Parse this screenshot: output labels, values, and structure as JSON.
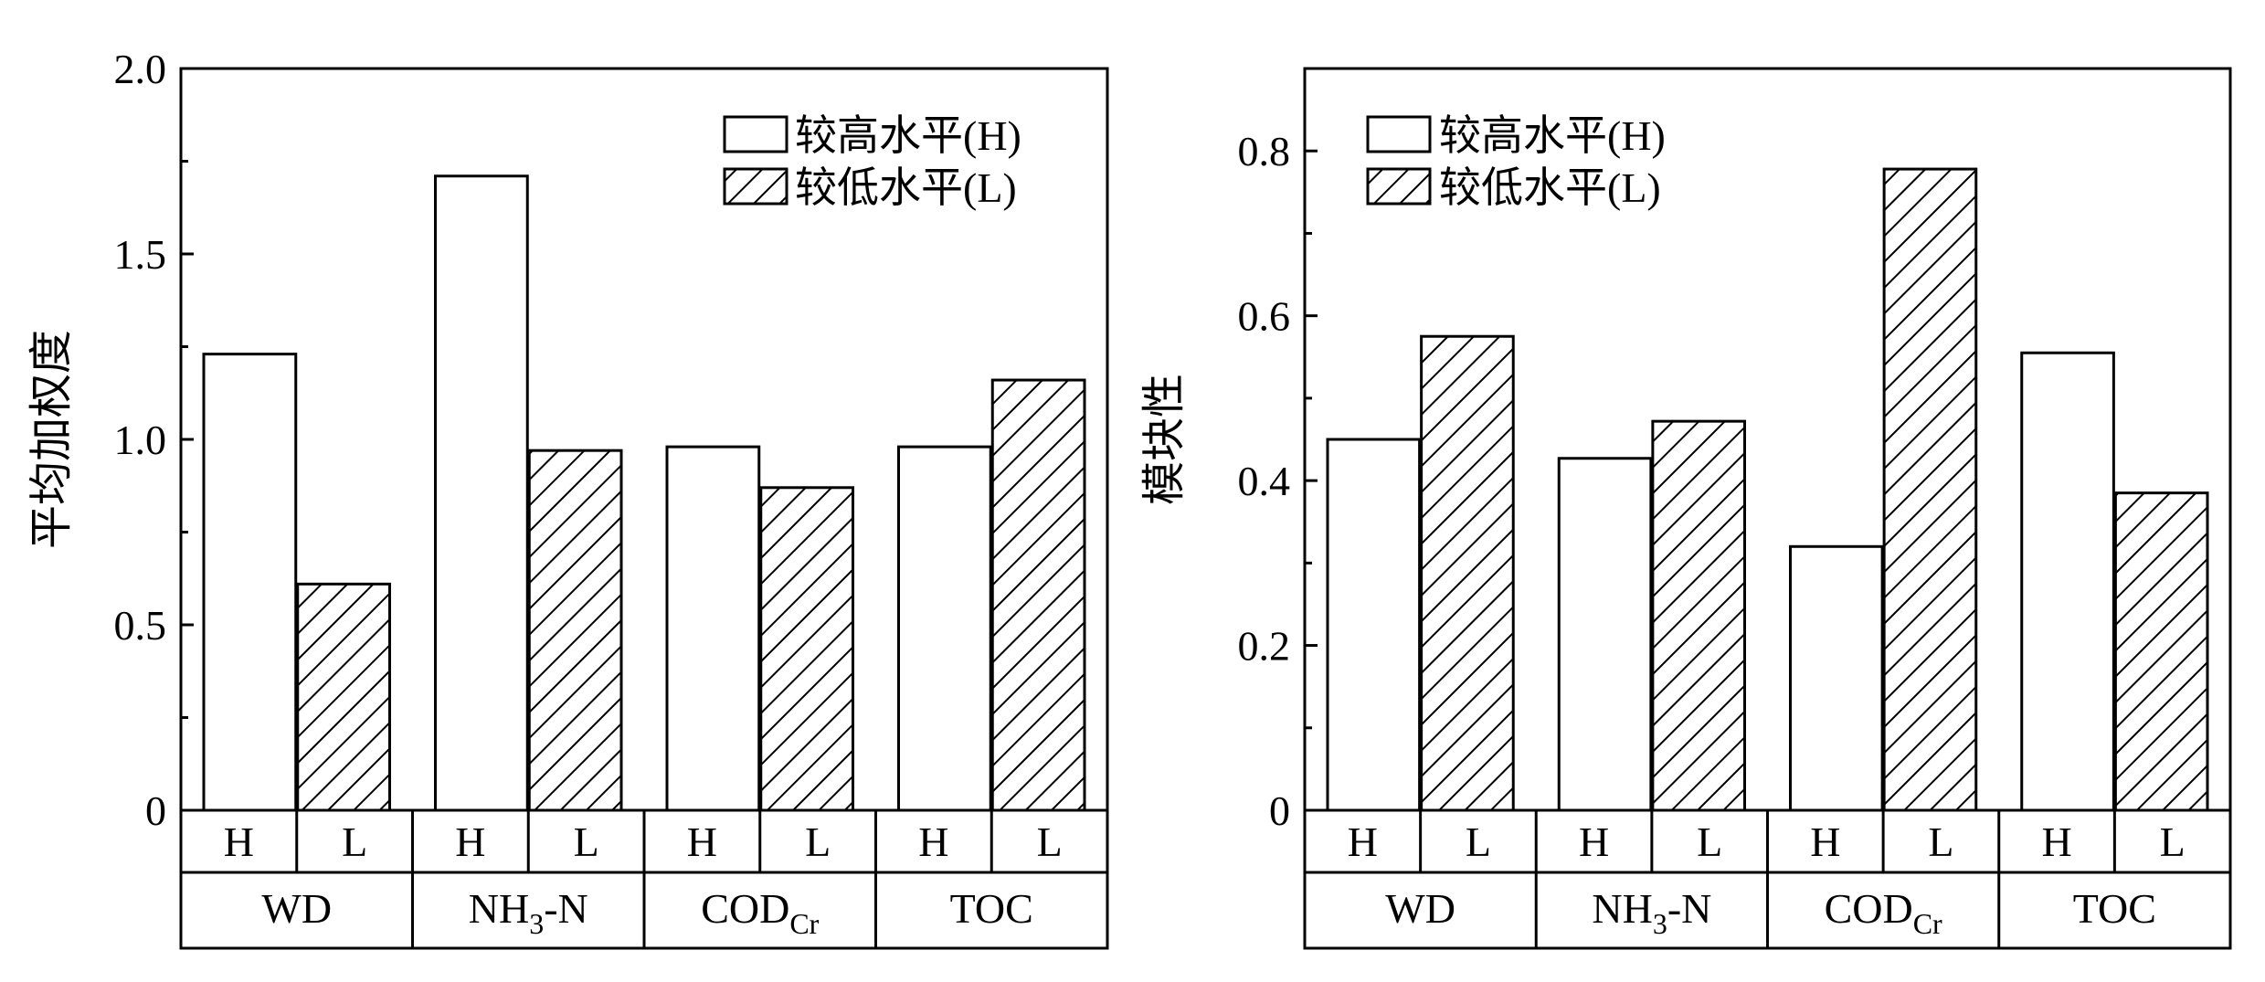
{
  "colors": {
    "stroke": "#000000",
    "background": "#ffffff",
    "hatch": "#000000"
  },
  "chart_data": [
    {
      "type": "bar",
      "title": "",
      "xlabel": "",
      "ylabel": "平均加权度",
      "ylim": [
        0,
        2.0
      ],
      "yticks": [
        "0",
        "0.5",
        "1.0",
        "1.5",
        "2.0"
      ],
      "ytick_values": [
        0,
        0.5,
        1.0,
        1.5,
        2.0
      ],
      "categories": [
        {
          "main": "WD",
          "sub": ""
        },
        {
          "main": "NH",
          "sub": "3",
          "suffix": "-N"
        },
        {
          "main": "COD",
          "sub": "Cr",
          "suffix": ""
        },
        {
          "main": "TOC",
          "sub": ""
        }
      ],
      "level_labels": [
        "H",
        "L"
      ],
      "series": [
        {
          "name": "较高水平(H)",
          "pattern": "open",
          "values": [
            1.23,
            1.71,
            0.98,
            0.98
          ]
        },
        {
          "name": "较低水平(L)",
          "pattern": "hatched",
          "values": [
            0.61,
            0.97,
            0.87,
            1.16
          ]
        }
      ],
      "legend": "top-right",
      "grid": false
    },
    {
      "type": "bar",
      "title": "",
      "xlabel": "",
      "ylabel": "模块性",
      "ylim": [
        0,
        0.9
      ],
      "yticks": [
        "0",
        "0.2",
        "0.4",
        "0.6",
        "0.8"
      ],
      "ytick_values": [
        0,
        0.2,
        0.4,
        0.6,
        0.8
      ],
      "categories": [
        {
          "main": "WD",
          "sub": ""
        },
        {
          "main": "NH",
          "sub": "3",
          "suffix": "-N"
        },
        {
          "main": "COD",
          "sub": "Cr",
          "suffix": ""
        },
        {
          "main": "TOC",
          "sub": ""
        }
      ],
      "level_labels": [
        "H",
        "L"
      ],
      "series": [
        {
          "name": "较高水平(H)",
          "pattern": "open",
          "values": [
            0.45,
            0.427,
            0.32,
            0.555
          ]
        },
        {
          "name": "较低水平(L)",
          "pattern": "hatched",
          "values": [
            0.575,
            0.472,
            0.778,
            0.385
          ]
        }
      ],
      "legend": "top-left",
      "grid": false
    }
  ]
}
